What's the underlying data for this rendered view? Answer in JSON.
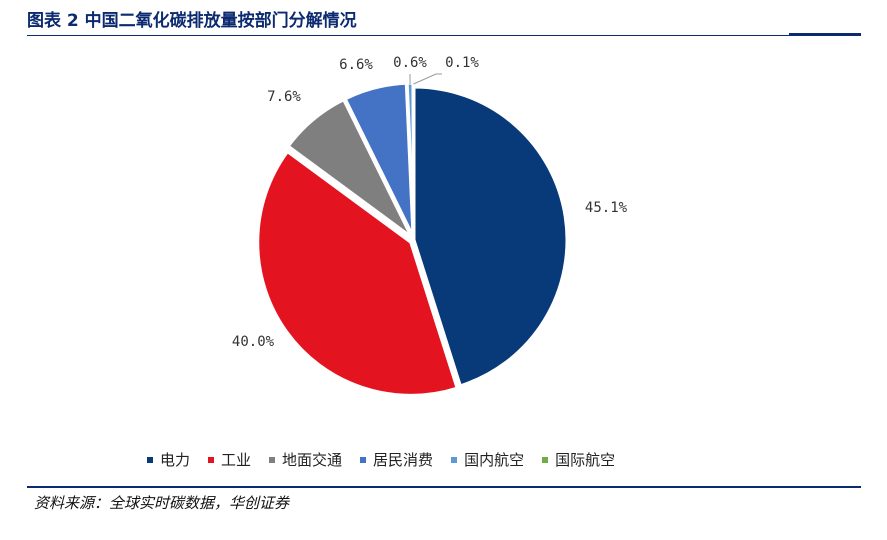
{
  "figure": {
    "title": "图表 2  中国二氧化碳排放量按部门分解情况",
    "source": "资料来源：全球实时碳数据，华创证券"
  },
  "chart_data": {
    "type": "pie",
    "title": "",
    "categories": [
      "电力",
      "工业",
      "地面交通",
      "居民消费",
      "国内航空",
      "国际航空"
    ],
    "values": [
      45.1,
      40.0,
      7.6,
      6.6,
      0.6,
      0.1
    ],
    "labels": [
      "45.1%",
      "40.0%",
      "7.6%",
      "6.6%",
      "0.6%",
      "0.1%"
    ],
    "colors": [
      "#083a7a",
      "#e3141f",
      "#7f7f7f",
      "#4472c4",
      "#5b9bd5",
      "#70ad47"
    ],
    "legend_position": "bottom",
    "start_angle": "12 o'clock",
    "direction": "clockwise"
  }
}
